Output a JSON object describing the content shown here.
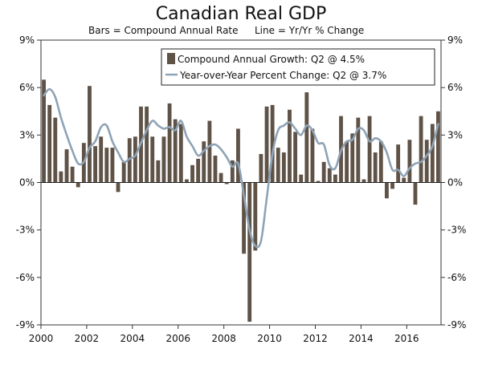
{
  "chart_data": {
    "type": "bar",
    "title": "Canadian Real GDP",
    "subtitle_bars": "Bars = Compound Annual Rate",
    "subtitle_line": "Line = Yr/Yr % Change",
    "ylim": [
      -9,
      9
    ],
    "yticks": [
      -9,
      -6,
      -3,
      0,
      3,
      6,
      9
    ],
    "ytick_labels_left": [
      "-9%",
      "-6%",
      "-3%",
      "0%",
      "3%",
      "6%",
      "9%"
    ],
    "ytick_labels_right": [
      "-9%",
      "-6%",
      "-3%",
      "0%",
      "3%",
      "6%",
      "9%"
    ],
    "xticks": [
      2000,
      2002,
      2004,
      2006,
      2008,
      2010,
      2012,
      2014,
      2016
    ],
    "xtick_labels": [
      "2000",
      "2002",
      "2004",
      "2006",
      "2008",
      "2010",
      "2012",
      "2014",
      "2016"
    ],
    "xlim": [
      2000,
      2017.5
    ],
    "legend": [
      {
        "label": "Compound Annual Growth: Q2 @ 4.5%",
        "kind": "bar",
        "color": "#5f5247"
      },
      {
        "label": "Year-over-Year Percent Change: Q2 @ 3.7%",
        "kind": "line",
        "color": "#8ea3b6"
      }
    ],
    "quarters": [
      "2000Q1",
      "2000Q2",
      "2000Q3",
      "2000Q4",
      "2001Q1",
      "2001Q2",
      "2001Q3",
      "2001Q4",
      "2002Q1",
      "2002Q2",
      "2002Q3",
      "2002Q4",
      "2003Q1",
      "2003Q2",
      "2003Q3",
      "2003Q4",
      "2004Q1",
      "2004Q2",
      "2004Q3",
      "2004Q4",
      "2005Q1",
      "2005Q2",
      "2005Q3",
      "2005Q4",
      "2006Q1",
      "2006Q2",
      "2006Q3",
      "2006Q4",
      "2007Q1",
      "2007Q2",
      "2007Q3",
      "2007Q4",
      "2008Q1",
      "2008Q2",
      "2008Q3",
      "2008Q4",
      "2009Q1",
      "2009Q2",
      "2009Q3",
      "2009Q4",
      "2010Q1",
      "2010Q2",
      "2010Q3",
      "2010Q4",
      "2011Q1",
      "2011Q2",
      "2011Q3",
      "2011Q4",
      "2012Q1",
      "2012Q2",
      "2012Q3",
      "2012Q4",
      "2013Q1",
      "2013Q2",
      "2013Q3",
      "2013Q4",
      "2014Q1",
      "2014Q2",
      "2014Q3",
      "2014Q4",
      "2015Q1",
      "2015Q2",
      "2015Q3",
      "2015Q4",
      "2016Q1",
      "2016Q2",
      "2016Q3",
      "2016Q4",
      "2017Q1",
      "2017Q2"
    ],
    "series": [
      {
        "name": "Compound Annual Growth",
        "type": "bar",
        "color": "#5f5247",
        "values": [
          6.5,
          4.9,
          4.1,
          0.7,
          2.1,
          1.0,
          -0.3,
          2.5,
          6.1,
          2.3,
          2.9,
          2.2,
          2.2,
          -0.6,
          1.3,
          2.8,
          2.9,
          4.8,
          4.8,
          2.9,
          1.4,
          2.9,
          5.0,
          4.0,
          3.7,
          0.2,
          1.1,
          1.5,
          2.6,
          3.9,
          1.7,
          0.6,
          -0.1,
          1.4,
          3.4,
          -4.5,
          -8.8,
          -4.3,
          1.8,
          4.8,
          4.9,
          2.2,
          1.9,
          4.6,
          3.2,
          0.5,
          5.7,
          3.4,
          0.1,
          1.3,
          0.9,
          0.5,
          4.2,
          2.6,
          3.1,
          4.1,
          0.2,
          4.2,
          1.9,
          2.6,
          -1.0,
          -0.4,
          2.4,
          0.3,
          2.7,
          -1.4,
          4.2,
          2.7,
          3.7,
          4.5
        ]
      },
      {
        "name": "Year-over-Year Percent Change",
        "type": "line",
        "color": "#8ea3b6",
        "values": [
          5.5,
          5.9,
          5.4,
          4.1,
          3.0,
          2.0,
          1.2,
          1.3,
          2.2,
          2.6,
          3.5,
          3.6,
          2.6,
          1.9,
          1.3,
          1.5,
          1.7,
          2.5,
          3.3,
          3.9,
          3.6,
          3.4,
          3.5,
          3.3,
          3.9,
          2.9,
          2.3,
          1.7,
          2.0,
          2.3,
          2.4,
          2.1,
          1.6,
          1.0,
          1.2,
          -0.8,
          -3.0,
          -4.0,
          -3.7,
          -1.0,
          1.8,
          3.3,
          3.6,
          3.8,
          3.4,
          3.0,
          3.6,
          3.3,
          2.5,
          2.4,
          1.1,
          0.9,
          2.0,
          2.6,
          2.7,
          3.4,
          3.3,
          2.6,
          2.8,
          2.6,
          1.9,
          0.8,
          0.8,
          0.4,
          0.9,
          1.2,
          1.3,
          1.7,
          2.3,
          3.7
        ]
      }
    ]
  }
}
